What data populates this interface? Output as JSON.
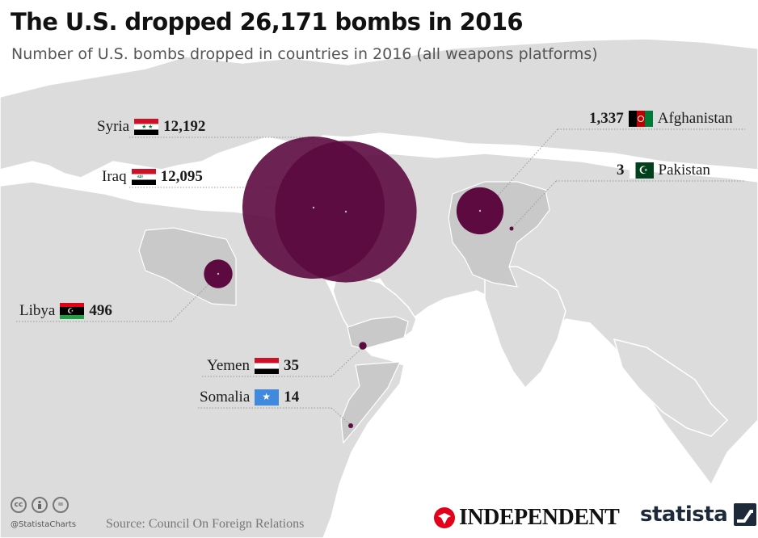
{
  "header": {
    "title": "The U.S. dropped 26,171 bombs in 2016",
    "subtitle": "Number of U.S. bombs dropped in countries in 2016 (all weapons platforms)"
  },
  "colors": {
    "bubble": "#5c0a3f",
    "land": "#dcdcdc",
    "highlight_land": "#c9c9c9",
    "ocean": "#ffffff"
  },
  "countries": [
    {
      "name": "Syria",
      "value": 12192,
      "value_label": "12,192",
      "flag": "syria"
    },
    {
      "name": "Iraq",
      "value": 12095,
      "value_label": "12,095",
      "flag": "iraq"
    },
    {
      "name": "Afghanistan",
      "value": 1337,
      "value_label": "1,337",
      "flag": "afghanistan"
    },
    {
      "name": "Pakistan",
      "value": 3,
      "value_label": "3",
      "flag": "pakistan"
    },
    {
      "name": "Libya",
      "value": 496,
      "value_label": "496",
      "flag": "libya"
    },
    {
      "name": "Yemen",
      "value": 35,
      "value_label": "35",
      "flag": "yemen"
    },
    {
      "name": "Somalia",
      "value": 14,
      "value_label": "14",
      "flag": "somalia"
    }
  ],
  "footer": {
    "handle": "@StatistaCharts",
    "source": "Source: Council On Foreign Relations",
    "partner_logo": "INDEPENDENT",
    "brand": "statista",
    "license_icons": [
      "cc-icon",
      "by-icon",
      "nd-icon"
    ]
  }
}
